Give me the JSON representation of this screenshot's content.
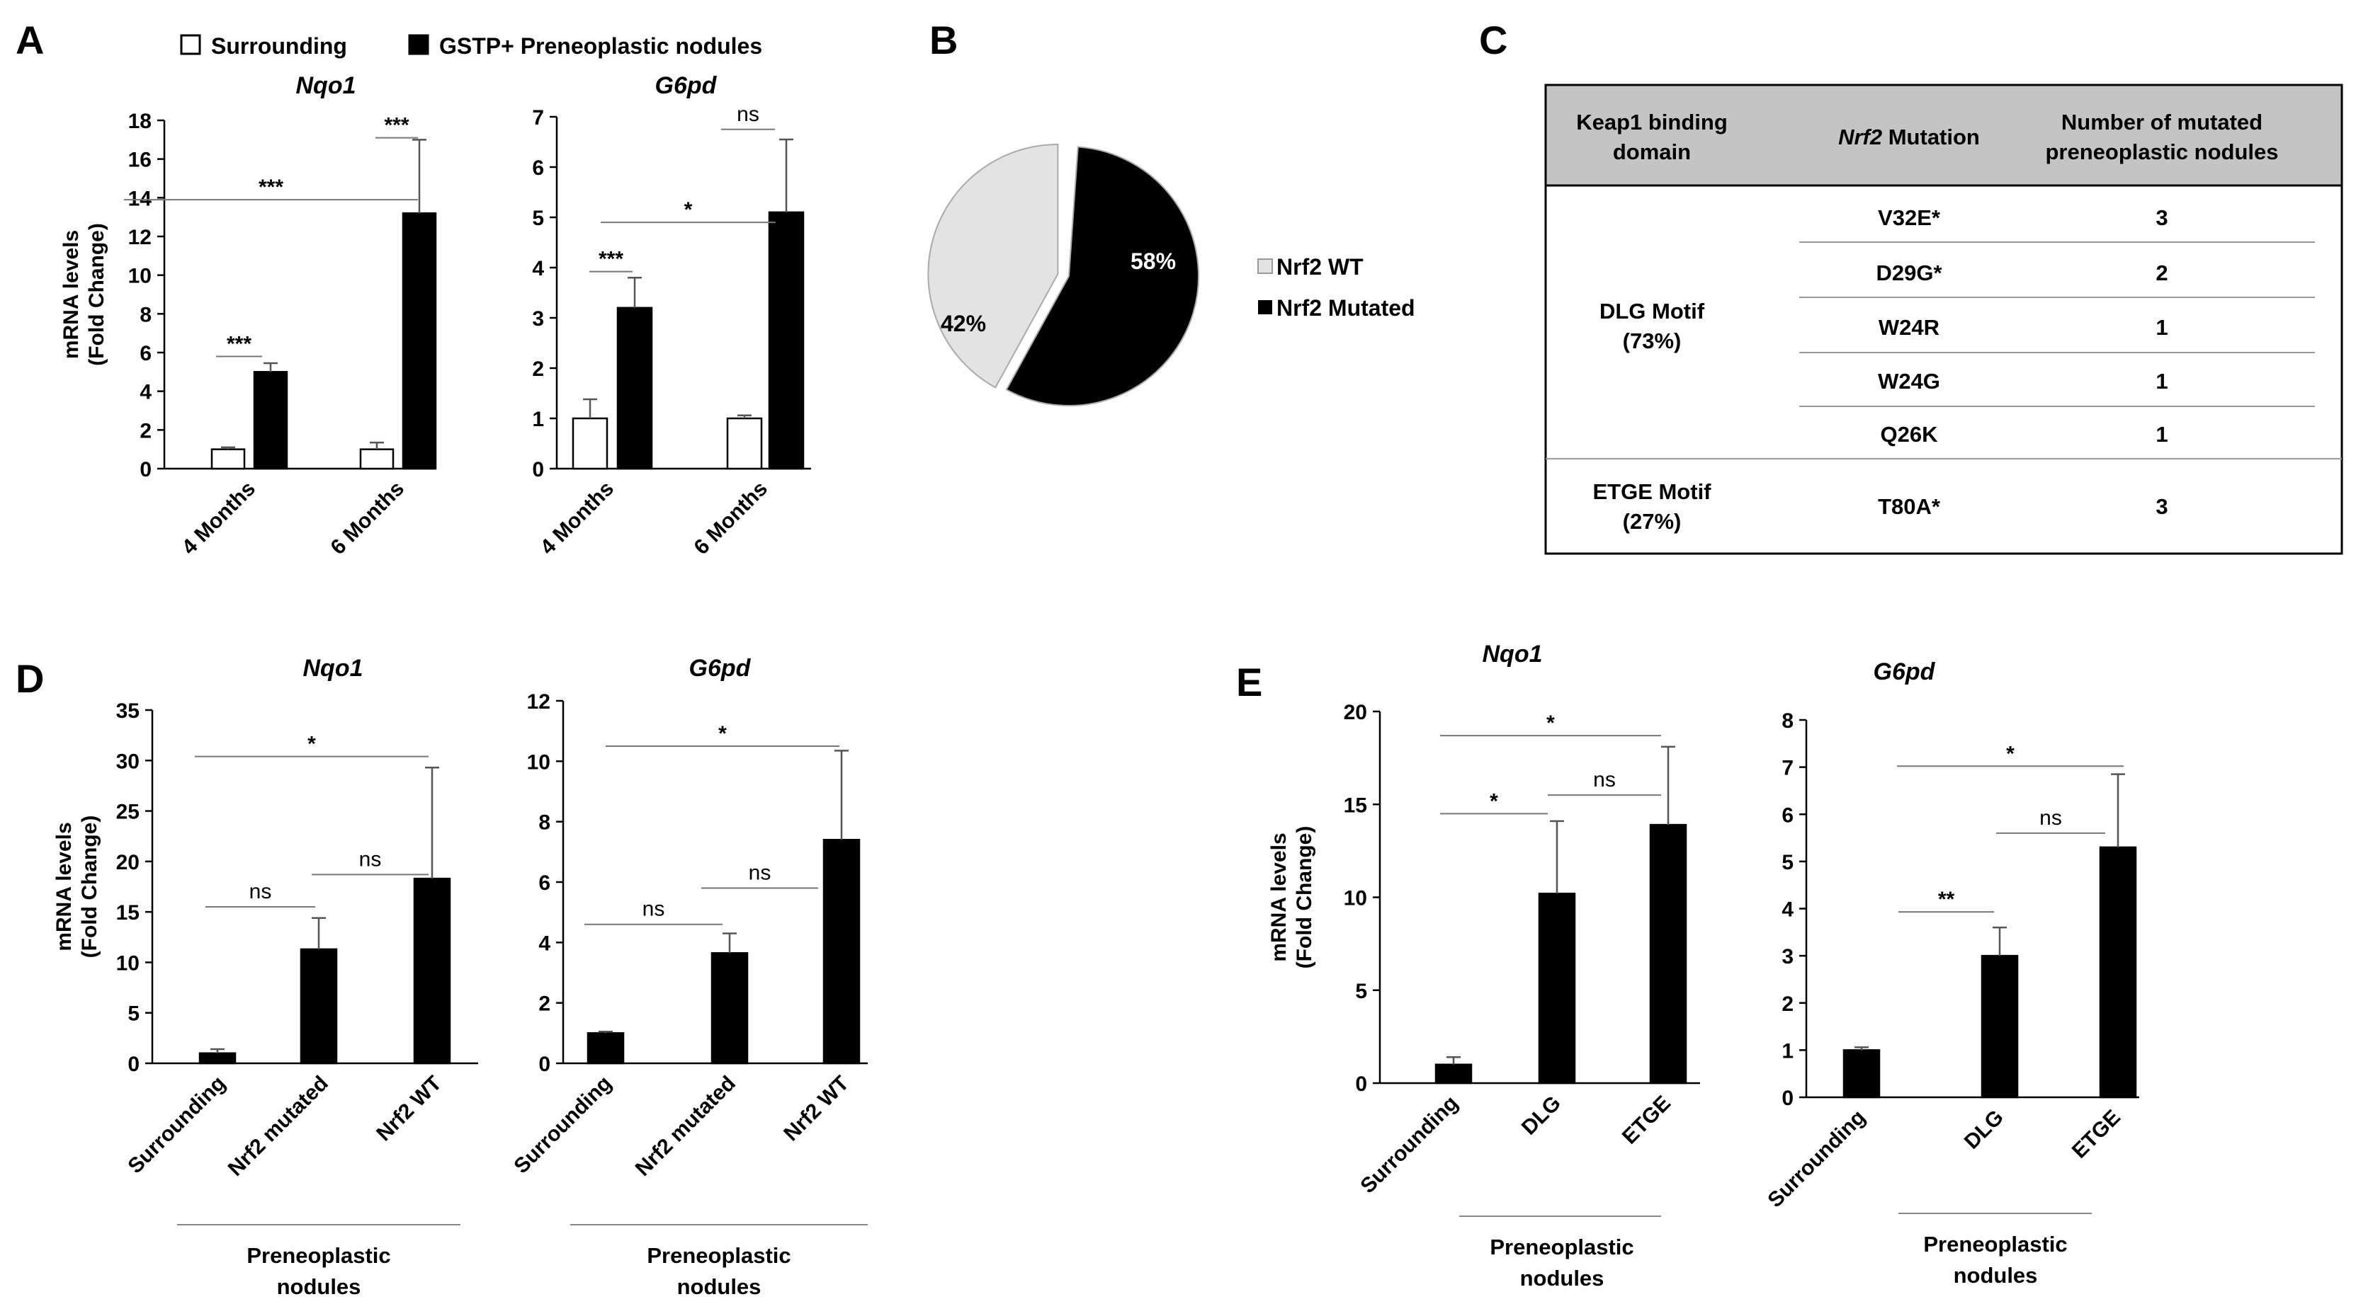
{
  "panels": {
    "A": "A",
    "B": "B",
    "C": "C",
    "D": "D",
    "E": "E"
  },
  "colors": {
    "surrounding": "#ffffff",
    "nodule": "#000000",
    "wt": "#e3e3e3",
    "mutated": "#000000",
    "header_bg": "#c4c4c4"
  },
  "legend_a": {
    "surrounding": "Surrounding",
    "nodules": "GSTP+ Preneoplastic nodules"
  },
  "group_label": [
    "Preneoplastic",
    "nodules"
  ],
  "chart_data": [
    {
      "id": "A1",
      "type": "bar",
      "title": "Nqo1",
      "ylabel": [
        "mRNA levels",
        "(Fold Change)"
      ],
      "ylim": [
        0,
        18
      ],
      "yticks": [
        "0",
        "2",
        "4",
        "6",
        "8",
        "10",
        "12",
        "14",
        "16",
        "18"
      ],
      "categories": [
        "4 Months",
        "6 Months"
      ],
      "series": [
        {
          "name": "Surrounding",
          "values": [
            1.0,
            1.0
          ],
          "errors": [
            0.1,
            0.35
          ]
        },
        {
          "name": "GSTP+ Preneoplastic nodules",
          "values": [
            5.0,
            13.2
          ],
          "errors": [
            0.45,
            3.8
          ]
        }
      ],
      "significance": [
        "***",
        "***",
        "***"
      ]
    },
    {
      "id": "A2",
      "type": "bar",
      "title": "G6pd",
      "ylabel": [],
      "ylim": [
        0,
        7
      ],
      "yticks": [
        "0",
        "1",
        "2",
        "3",
        "4",
        "5",
        "6",
        "7"
      ],
      "categories": [
        "4 Months",
        "6 Months"
      ],
      "series": [
        {
          "name": "Surrounding",
          "values": [
            1.0,
            1.0
          ],
          "errors": [
            0.38,
            0.06
          ]
        },
        {
          "name": "GSTP+ Preneoplastic nodules",
          "values": [
            3.2,
            5.1
          ],
          "errors": [
            0.6,
            1.45
          ]
        }
      ],
      "significance": [
        "***",
        "*",
        "ns"
      ]
    },
    {
      "id": "B",
      "type": "pie",
      "slices": [
        {
          "label": "Nrf2 WT",
          "value": 42,
          "text": "42%"
        },
        {
          "label": "Nrf2 Mutated",
          "value": 58,
          "text": "58%"
        }
      ]
    },
    {
      "id": "C",
      "type": "table",
      "headers": [
        [
          "Keap1 binding",
          "domain"
        ],
        [
          "Nrf2",
          " Mutation"
        ],
        [
          "Number of mutated",
          "preneoplastic nodules"
        ]
      ],
      "groups": [
        {
          "domain": [
            "DLG Motif",
            "(73%)"
          ],
          "rows": [
            [
              "V32E*",
              "3"
            ],
            [
              "D29G*",
              "2"
            ],
            [
              "W24R",
              "1"
            ],
            [
              "W24G",
              "1"
            ],
            [
              "Q26K",
              "1"
            ]
          ]
        },
        {
          "domain": [
            "ETGE Motif",
            "(27%)"
          ],
          "rows": [
            [
              "T80A*",
              "3"
            ]
          ]
        }
      ]
    },
    {
      "id": "D1",
      "type": "bar",
      "title": "Nqo1",
      "ylabel": [
        "mRNA levels",
        "(Fold Change)"
      ],
      "ylim": [
        0,
        35
      ],
      "yticks": [
        "0",
        "5",
        "10",
        "15",
        "20",
        "25",
        "30",
        "35"
      ],
      "categories": [
        "Surrounding",
        "Nrf2 mutated",
        "Nrf2 WT"
      ],
      "series": [
        {
          "name": "mRNA",
          "values": [
            1.0,
            11.3,
            18.3
          ],
          "errors": [
            0.4,
            3.1,
            11.0
          ]
        }
      ],
      "significance": [
        "ns",
        "ns",
        "*"
      ]
    },
    {
      "id": "D2",
      "type": "bar",
      "title": "G6pd",
      "ylabel": [],
      "ylim": [
        0,
        12
      ],
      "yticks": [
        "0",
        "2",
        "4",
        "6",
        "8",
        "10",
        "12"
      ],
      "categories": [
        "Surrounding",
        "Nrf2 mutated",
        "Nrf2 WT"
      ],
      "series": [
        {
          "name": "mRNA",
          "values": [
            1.0,
            3.65,
            7.4
          ],
          "errors": [
            0.05,
            0.65,
            2.95
          ]
        }
      ],
      "significance": [
        "ns",
        "ns",
        "*"
      ]
    },
    {
      "id": "E1",
      "type": "bar",
      "title": "Nqo1",
      "ylabel": [
        "mRNA levels",
        "(Fold Change)"
      ],
      "ylim": [
        0,
        20
      ],
      "yticks": [
        "0",
        "5",
        "10",
        "15",
        "20"
      ],
      "categories": [
        "Surrounding",
        "DLG",
        "ETGE"
      ],
      "series": [
        {
          "name": "mRNA",
          "values": [
            1.0,
            10.2,
            13.9
          ],
          "errors": [
            0.4,
            3.9,
            4.2
          ]
        }
      ],
      "significance": [
        "*",
        "ns",
        "*"
      ]
    },
    {
      "id": "E2",
      "type": "bar",
      "title": "G6pd",
      "ylabel": [],
      "ylim": [
        0,
        8
      ],
      "yticks": [
        "0",
        "1",
        "2",
        "3",
        "4",
        "5",
        "6",
        "7",
        "8"
      ],
      "categories": [
        "Surrounding",
        "DLG",
        "ETGE"
      ],
      "series": [
        {
          "name": "mRNA",
          "values": [
            1.0,
            3.0,
            5.3
          ],
          "errors": [
            0.06,
            0.6,
            1.55
          ]
        }
      ],
      "significance": [
        "**",
        "ns",
        "*"
      ]
    }
  ]
}
